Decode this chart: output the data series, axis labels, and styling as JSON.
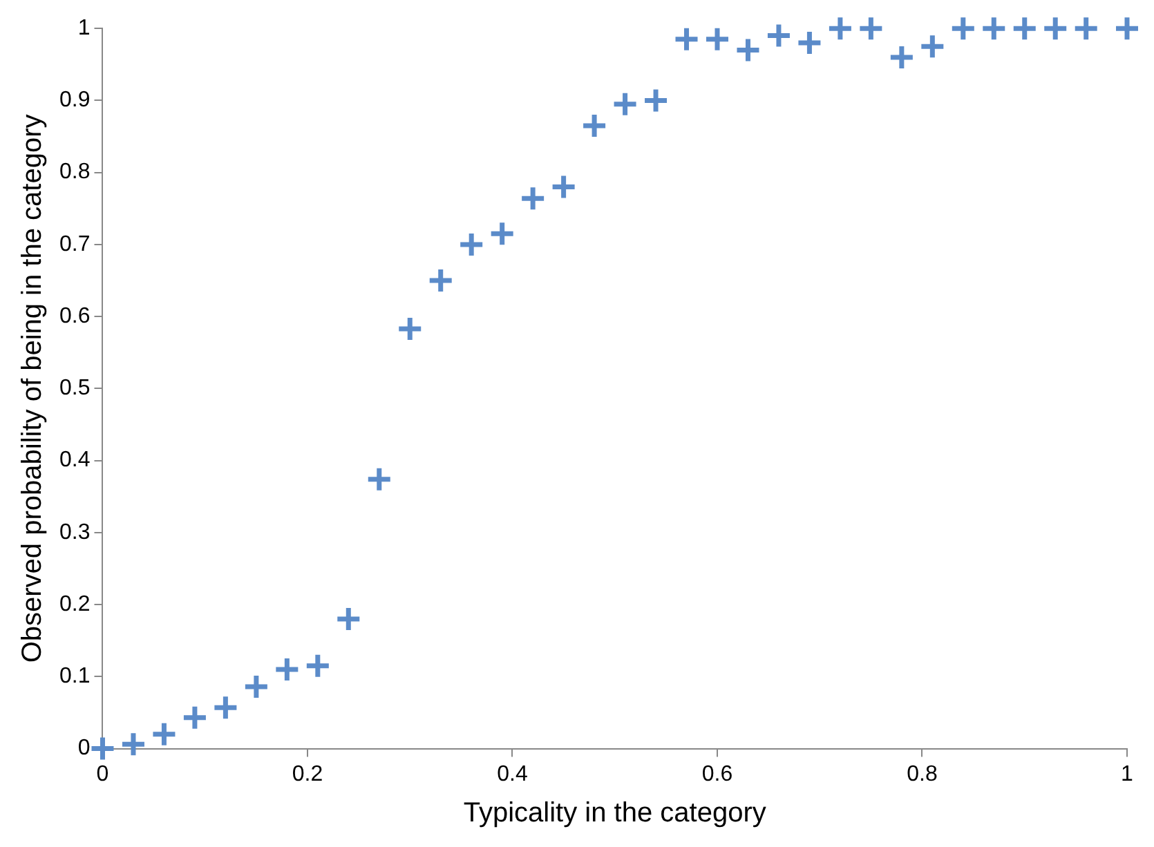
{
  "chart_data": {
    "type": "scatter",
    "xlabel": "Typicality in the category",
    "ylabel": "Observed probability of being in the category",
    "x": [
      0,
      0.03,
      0.06,
      0.09,
      0.12,
      0.15,
      0.18,
      0.21,
      0.24,
      0.27,
      0.3,
      0.33,
      0.36,
      0.39,
      0.42,
      0.45,
      0.48,
      0.51,
      0.54,
      0.57,
      0.6,
      0.63,
      0.66,
      0.69,
      0.72,
      0.75,
      0.78,
      0.81,
      0.84,
      0.87,
      0.9,
      0.93,
      0.96,
      1
    ],
    "series": [
      {
        "color": "#5b8bc9",
        "values": [
          0,
          0.006,
          0.02,
          0.043,
          0.057,
          0.086,
          0.11,
          0.115,
          0.18,
          0.374,
          0.583,
          0.65,
          0.7,
          0.715,
          0.764,
          0.78,
          0.865,
          0.895,
          0.9,
          0.985,
          0.985,
          0.97,
          0.99,
          0.98,
          1,
          1,
          0.96,
          0.975,
          1,
          1,
          1,
          1,
          1,
          1
        ]
      }
    ],
    "xlim": [
      0,
      1
    ],
    "xticks": [
      0,
      0.2,
      0.4,
      0.6,
      0.8,
      1
    ],
    "ylim": [
      0,
      1
    ],
    "yticks": [
      0,
      0.1,
      0.2,
      0.3,
      0.4,
      0.5,
      0.6,
      0.7,
      0.8,
      0.9,
      1
    ],
    "grid": false,
    "legend": false,
    "marker": "cross"
  }
}
